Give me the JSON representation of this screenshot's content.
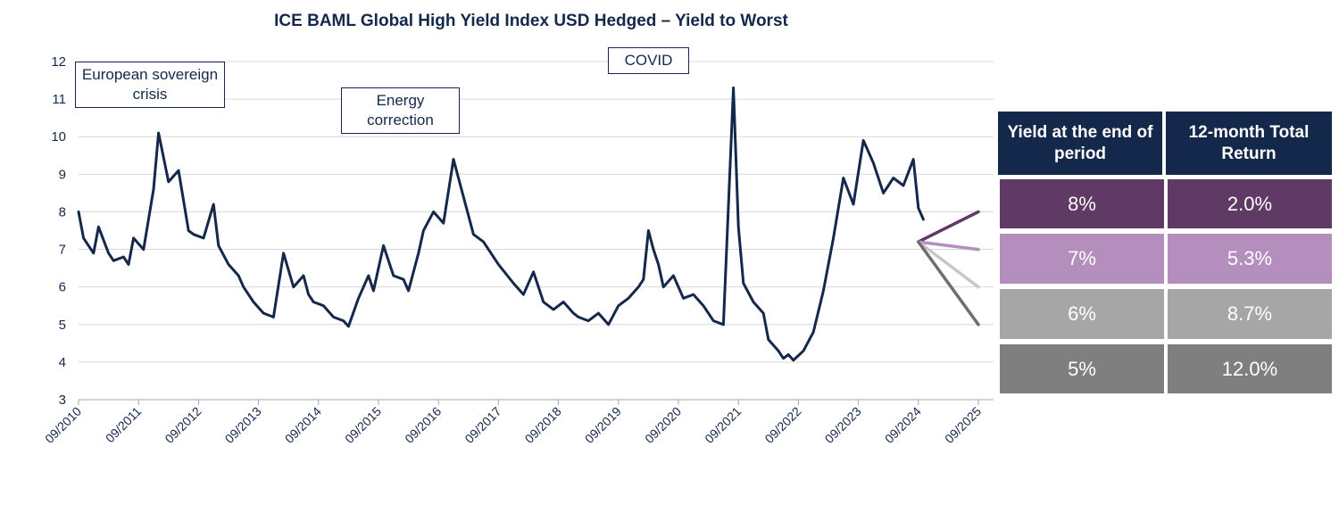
{
  "title": "ICE BAML Global High Yield Index USD Hedged – Yield to Worst",
  "annotations": {
    "european": "European sovereign crisis",
    "energy": "Energy correction",
    "covid": "COVID"
  },
  "table": {
    "headers": [
      "Yield at the end of period",
      "12-month Total Return"
    ],
    "rows": [
      {
        "yield": "8%",
        "ret": "2.0%",
        "color": "#5e3a64"
      },
      {
        "yield": "7%",
        "ret": "5.3%",
        "color": "#b48fbe"
      },
      {
        "yield": "6%",
        "ret": "8.7%",
        "color": "#a6a6a6"
      },
      {
        "yield": "5%",
        "ret": "12.0%",
        "color": "#7f7f7f"
      }
    ]
  },
  "chart_data": {
    "type": "line",
    "title": "ICE BAML Global High Yield Index USD Hedged – Yield to Worst",
    "xlabel": "",
    "ylabel": "",
    "ylim": [
      3,
      12
    ],
    "yticks": [
      3,
      4,
      5,
      6,
      7,
      8,
      9,
      10,
      11,
      12
    ],
    "xticks": [
      "09/2010",
      "09/2011",
      "09/2012",
      "09/2013",
      "09/2014",
      "09/2015",
      "09/2016",
      "09/2017",
      "09/2018",
      "09/2019",
      "09/2020",
      "09/2021",
      "09/2022",
      "09/2023",
      "09/2024",
      "09/2025"
    ],
    "grid": true,
    "line_color": "#14284b",
    "series": [
      {
        "x": [
          "2010-09",
          "2010-10",
          "2010-12",
          "2011-01",
          "2011-03",
          "2011-04",
          "2011-06",
          "2011-07",
          "2011-08",
          "2011-10",
          "2011-12",
          "2012-01",
          "2012-03",
          "2012-05",
          "2012-06",
          "2012-07",
          "2012-08",
          "2012-10",
          "2012-12",
          "2013-01",
          "2013-03",
          "2013-05",
          "2013-06",
          "2013-08",
          "2013-10",
          "2013-12",
          "2014-02",
          "2014-04",
          "2014-06",
          "2014-07",
          "2014-08",
          "2014-10",
          "2014-12",
          "2015-02",
          "2015-03",
          "2015-05",
          "2015-07",
          "2015-08",
          "2015-10",
          "2015-12",
          "2016-02",
          "2016-03",
          "2016-05",
          "2016-06",
          "2016-08",
          "2016-10",
          "2016-12",
          "2017-02",
          "2017-04",
          "2017-06",
          "2017-09",
          "2017-12",
          "2018-02",
          "2018-04",
          "2018-06",
          "2018-08",
          "2018-10",
          "2018-12",
          "2019-01",
          "2019-03",
          "2019-05",
          "2019-07",
          "2019-09",
          "2019-11",
          "2020-01",
          "2020-02",
          "2020-03",
          "2020-04",
          "2020-05",
          "2020-06",
          "2020-08",
          "2020-10",
          "2020-12",
          "2021-02",
          "2021-04",
          "2021-06",
          "2021-08",
          "2021-09",
          "2021-10",
          "2021-12",
          "2022-02",
          "2022-03",
          "2022-05",
          "2022-06",
          "2022-07",
          "2022-08",
          "2022-10",
          "2022-12",
          "2023-02",
          "2023-04",
          "2023-06",
          "2023-08",
          "2023-10",
          "2023-12",
          "2024-02",
          "2024-04",
          "2024-06",
          "2024-08",
          "2024-09",
          "2024-10"
        ],
        "y": [
          8.0,
          7.3,
          6.9,
          7.6,
          6.9,
          6.7,
          6.8,
          6.6,
          7.3,
          7.0,
          8.6,
          10.1,
          8.8,
          9.1,
          8.3,
          7.5,
          7.4,
          7.3,
          8.2,
          7.1,
          6.6,
          6.3,
          6.0,
          5.6,
          5.3,
          5.2,
          6.9,
          6.0,
          6.3,
          5.8,
          5.6,
          5.5,
          5.2,
          5.1,
          4.95,
          5.7,
          6.3,
          5.9,
          7.1,
          6.3,
          6.2,
          5.9,
          6.9,
          7.5,
          8.0,
          7.7,
          9.4,
          8.4,
          7.4,
          7.2,
          6.6,
          6.1,
          5.8,
          6.4,
          5.6,
          5.4,
          5.6,
          5.3,
          5.2,
          5.1,
          5.3,
          5.0,
          5.5,
          5.7,
          6.0,
          6.2,
          7.5,
          7.0,
          6.6,
          6.0,
          6.3,
          5.7,
          5.8,
          5.5,
          5.1,
          5.0,
          11.3,
          7.6,
          6.1,
          5.6,
          5.3,
          4.6,
          4.3,
          4.1,
          4.2,
          4.05,
          4.3,
          4.8,
          5.9,
          7.3,
          8.9,
          8.2,
          9.9,
          9.3,
          8.5,
          8.9,
          8.7,
          9.4,
          8.1,
          7.8
        ]
      },
      {
        "name": "8%",
        "x": [
          "2024-09",
          "2025-09"
        ],
        "y": [
          7.2,
          8.0
        ],
        "color": "#5e3a64"
      },
      {
        "name": "7%",
        "x": [
          "2024-09",
          "2025-09"
        ],
        "y": [
          7.2,
          7.0
        ],
        "color": "#b48fbe"
      },
      {
        "name": "6%",
        "x": [
          "2024-09",
          "2025-09"
        ],
        "y": [
          7.2,
          6.0
        ],
        "color": "#c8c8c8"
      },
      {
        "name": "5%",
        "x": [
          "2024-09",
          "2025-09"
        ],
        "y": [
          7.2,
          5.0
        ],
        "color": "#6e6e6e"
      }
    ]
  }
}
